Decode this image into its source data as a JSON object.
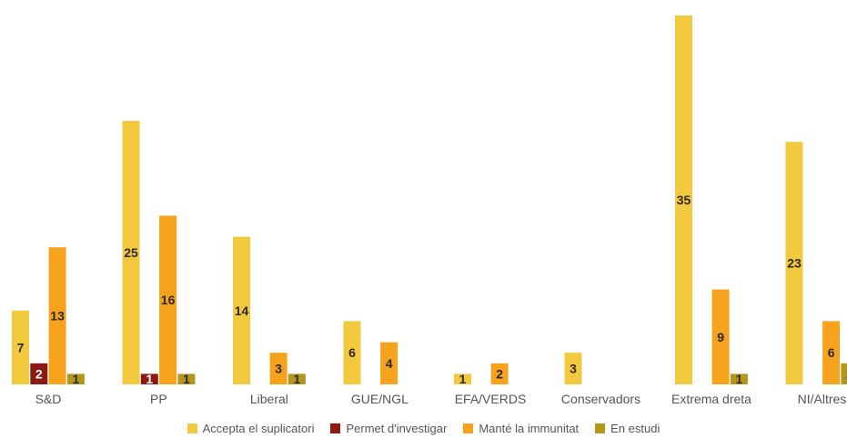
{
  "chart_data": {
    "type": "bar",
    "categories": [
      "S&D",
      "PP",
      "Liberal",
      "GUE/NGL",
      "EFA/VERDS",
      "Conservadors",
      "Extrema dreta",
      "NI/Altres"
    ],
    "series": [
      {
        "name": "Accepta el suplicatori",
        "color": "#f2c83c",
        "values": [
          7,
          25,
          14,
          6,
          1,
          3,
          35,
          23
        ]
      },
      {
        "name": "Permet d'investigar",
        "color": "#8b1a12",
        "values": [
          2,
          1,
          null,
          null,
          null,
          null,
          null,
          null
        ]
      },
      {
        "name": "Manté la immunitat",
        "color": "#f7a21c",
        "values": [
          13,
          16,
          3,
          4,
          2,
          null,
          9,
          6
        ]
      },
      {
        "name": "En estudi",
        "color": "#b5961c",
        "values": [
          1,
          1,
          1,
          null,
          null,
          null,
          1,
          2
        ]
      }
    ],
    "ylim": [
      0,
      35
    ],
    "grid": false,
    "legend": "bottom"
  }
}
